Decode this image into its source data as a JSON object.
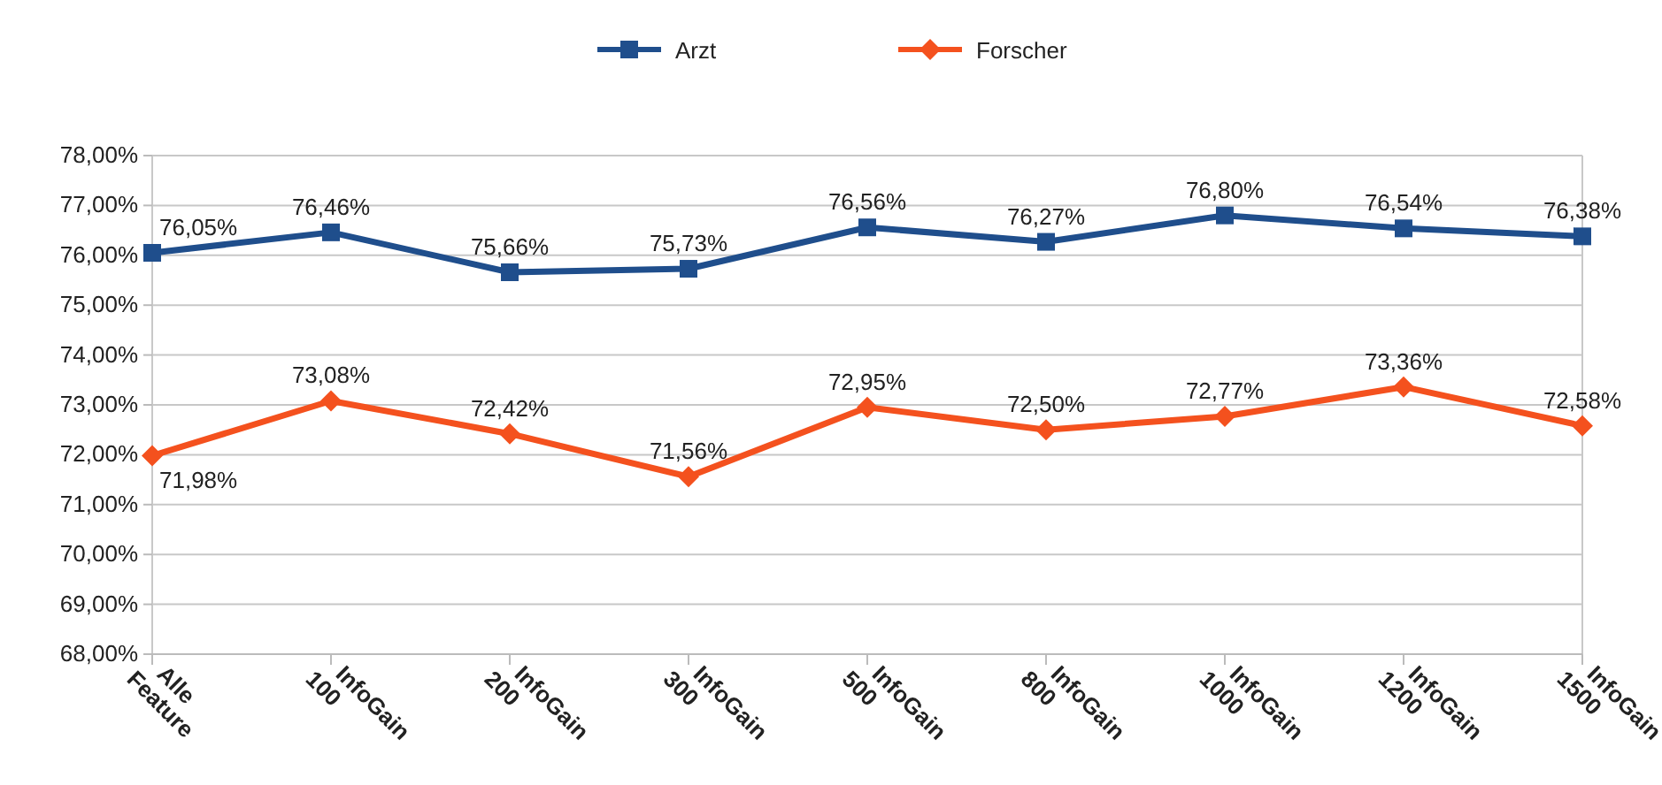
{
  "chart_data": {
    "type": "line",
    "categories": [
      "Alle Feature",
      "InfoGain 100",
      "InfoGain 200",
      "InfoGain 300",
      "InfoGain 500",
      "InfoGain 800",
      "InfoGain 1000",
      "InfoGain 1200",
      "InfoGain 1500"
    ],
    "series": [
      {
        "name": "Arzt",
        "color": "#1f4e8c",
        "marker": "square",
        "values": [
          76.05,
          76.46,
          75.66,
          75.73,
          76.56,
          76.27,
          76.8,
          76.54,
          76.38
        ],
        "value_labels": [
          "76,05%",
          "76,46%",
          "75,66%",
          "75,73%",
          "76,56%",
          "76,27%",
          "76,80%",
          "76,54%",
          "76,38%"
        ]
      },
      {
        "name": "Forscher",
        "color": "#f4511e",
        "marker": "diamond",
        "values": [
          71.98,
          73.08,
          72.42,
          71.56,
          72.95,
          72.5,
          72.77,
          73.36,
          72.58
        ],
        "value_labels": [
          "71,98%",
          "73,08%",
          "72,42%",
          "71,56%",
          "72,95%",
          "72,50%",
          "72,77%",
          "73,36%",
          "72,58%"
        ]
      }
    ],
    "ylim": [
      68,
      78
    ],
    "yticks": [
      {
        "value": 68,
        "label": "68,00%"
      },
      {
        "value": 69,
        "label": "69,00%"
      },
      {
        "value": 70,
        "label": "70,00%"
      },
      {
        "value": 71,
        "label": "71,00%"
      },
      {
        "value": 72,
        "label": "72,00%"
      },
      {
        "value": 73,
        "label": "73,00%"
      },
      {
        "value": 74,
        "label": "74,00%"
      },
      {
        "value": 75,
        "label": "75,00%"
      },
      {
        "value": 76,
        "label": "76,00%"
      },
      {
        "value": 77,
        "label": "77,00%"
      },
      {
        "value": 78,
        "label": "78,00%"
      }
    ],
    "grid": "y",
    "legend": "top",
    "line_style": "solid"
  }
}
